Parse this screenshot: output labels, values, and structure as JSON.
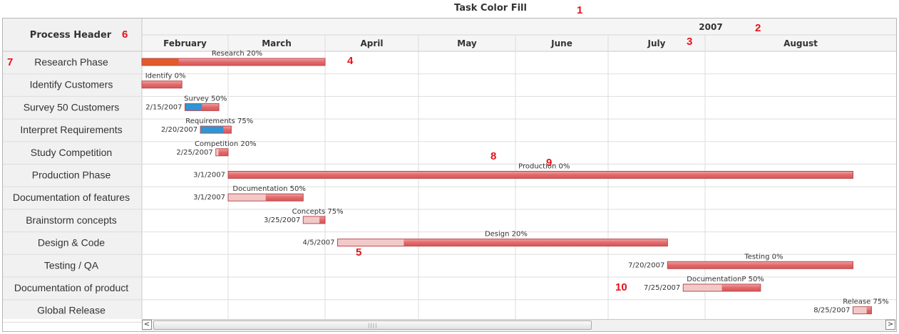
{
  "title": "Task Color Fill",
  "callouts": [
    "1",
    "2",
    "3",
    "4",
    "5",
    "6",
    "7",
    "8",
    "9",
    "10"
  ],
  "chart_data": {
    "type": "gantt",
    "process_header": "Process Header",
    "year": "2007",
    "months": [
      {
        "name": "February",
        "start": "2007-02-01",
        "end": "2007-03-01"
      },
      {
        "name": "March",
        "start": "2007-03-01",
        "end": "2007-04-01"
      },
      {
        "name": "April",
        "start": "2007-04-01",
        "end": "2007-05-01"
      },
      {
        "name": "May",
        "start": "2007-05-01",
        "end": "2007-06-01"
      },
      {
        "name": "June",
        "start": "2007-06-01",
        "end": "2007-07-01"
      },
      {
        "name": "July",
        "start": "2007-07-01",
        "end": "2007-08-01"
      },
      {
        "name": "August",
        "start": "2007-08-01",
        "end": "2007-09-01"
      }
    ],
    "visible_range": [
      "2007-02-01",
      "2007-09-01"
    ],
    "processes": [
      "Research Phase",
      "Identify Customers",
      "Survey 50 Customers",
      "Interpret Requirements",
      "Study Competition",
      "Production Phase",
      "Documentation of features",
      "Brainstorm concepts",
      "Design & Code",
      "Testing / QA",
      "Documentation of product",
      "Global Release"
    ],
    "tasks": [
      {
        "label": "Research 20%",
        "start": "2007-02-01",
        "end": "2007-04-01",
        "percent": 20,
        "fill": "#e25a2a",
        "date_label": ""
      },
      {
        "label": "Identify 0%",
        "start": "2007-02-01",
        "end": "2007-02-14",
        "percent": 0,
        "fill": "#e25a2a",
        "date_label": ""
      },
      {
        "label": "Survey 50%",
        "start": "2007-02-15",
        "end": "2007-02-26",
        "percent": 50,
        "fill": "#2e95d6",
        "date_label": "2/15/2007"
      },
      {
        "label": "Requirements 75%",
        "start": "2007-02-20",
        "end": "2007-03-02",
        "percent": 75,
        "fill": "#2e95d6",
        "date_label": "2/20/2007"
      },
      {
        "label": "Competition 20%",
        "start": "2007-02-25",
        "end": "2007-03-01",
        "percent": 20,
        "fill": "#f2c9c9",
        "date_label": "2/25/2007"
      },
      {
        "label": "Production 0%",
        "start": "2007-03-01",
        "end": "2007-08-25",
        "percent": 0,
        "fill": "#f2c9c9",
        "date_label": "3/1/2007"
      },
      {
        "label": "Documentation 50%",
        "start": "2007-03-01",
        "end": "2007-03-25",
        "percent": 50,
        "fill": "#f2c9c9",
        "date_label": "3/1/2007"
      },
      {
        "label": "Concepts 75%",
        "start": "2007-03-25",
        "end": "2007-04-01",
        "percent": 75,
        "fill": "#f2c9c9",
        "date_label": "3/25/2007"
      },
      {
        "label": "Design 20%",
        "start": "2007-04-05",
        "end": "2007-07-20",
        "percent": 20,
        "fill": "#f2c9c9",
        "date_label": "4/5/2007"
      },
      {
        "label": "Testing 0%",
        "start": "2007-07-20",
        "end": "2007-08-25",
        "percent": 0,
        "fill": "#f2c9c9",
        "date_label": "7/20/2007"
      },
      {
        "label": "DocumentationP 50%",
        "start": "2007-07-25",
        "end": "2007-08-10",
        "percent": 50,
        "fill": "#f2c9c9",
        "date_label": "7/25/2007"
      },
      {
        "label": "Release 75%",
        "start": "2007-08-25",
        "end": "2007-08-28",
        "percent": 75,
        "fill": "#f2c9c9",
        "date_label": "8/25/2007"
      }
    ],
    "bar_color": "#e0696b",
    "grid": true
  },
  "scrollbar": {
    "left_arrow": "<",
    "right_arrow": ">"
  }
}
